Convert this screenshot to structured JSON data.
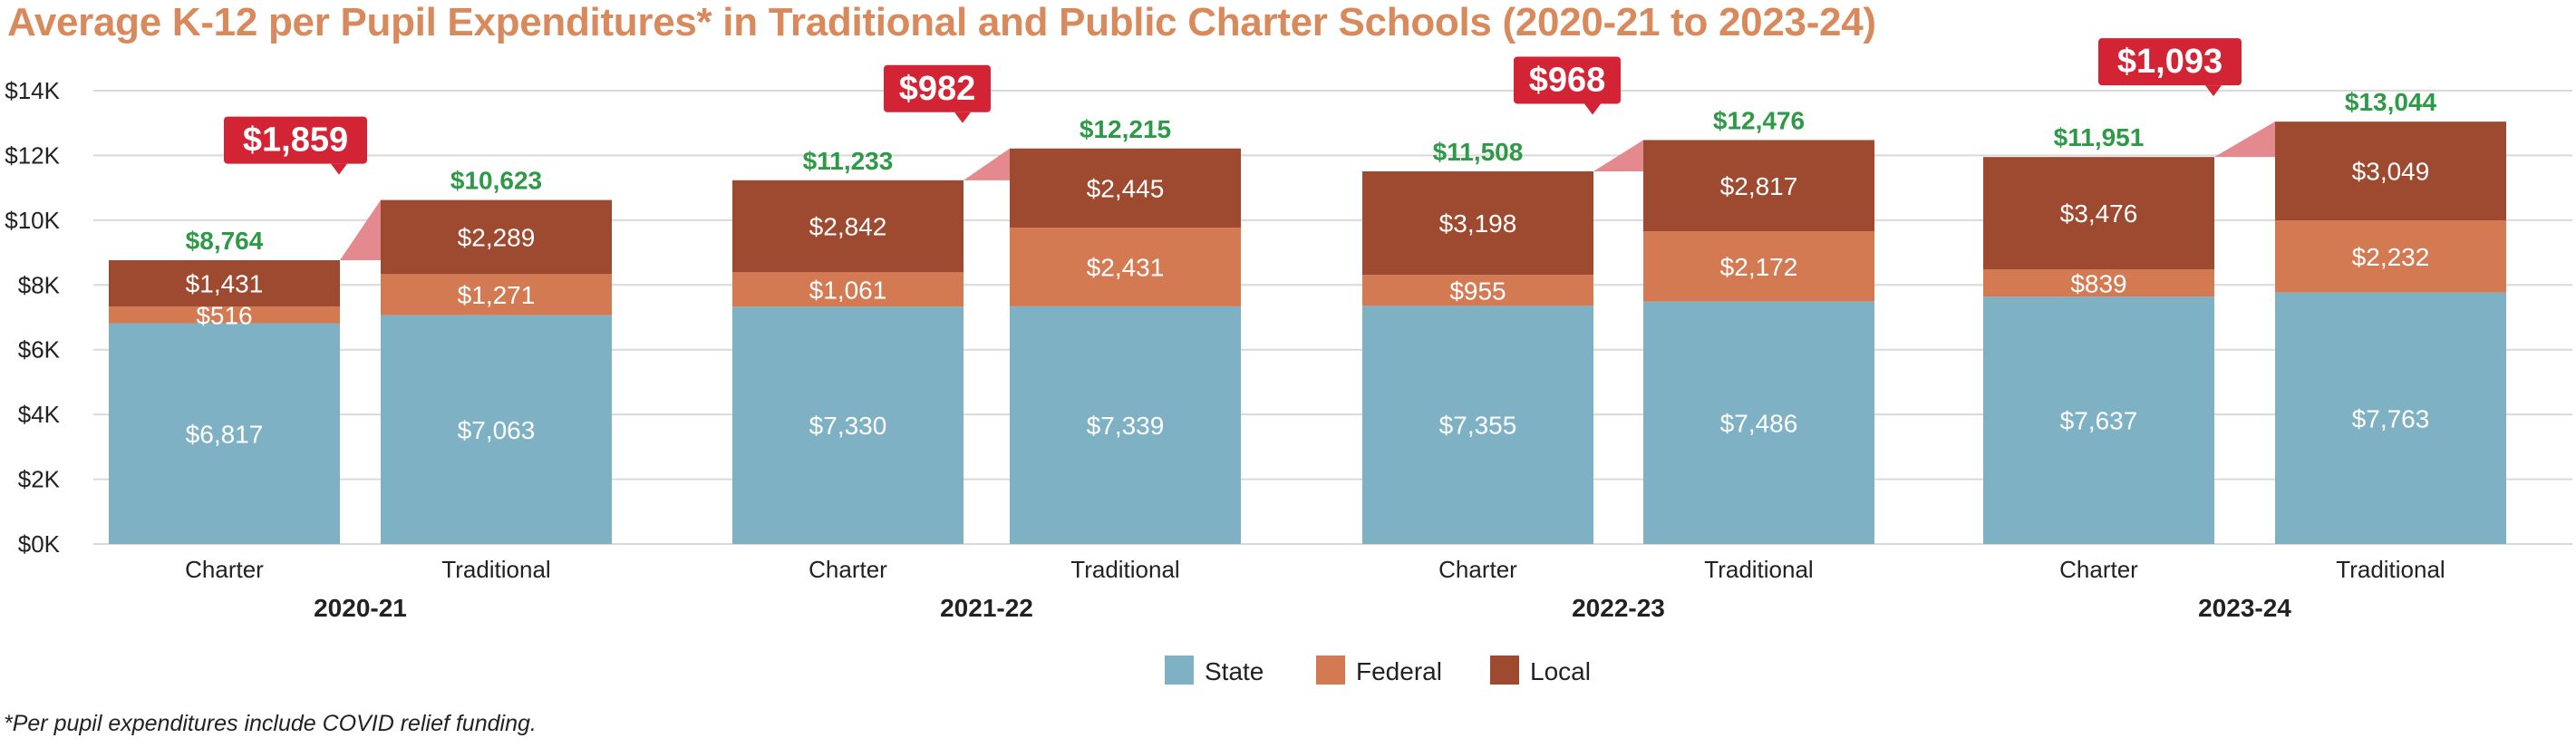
{
  "title": "Average K-12 per Pupil Expenditures* in Traditional and Public Charter Schools (2020-21 to 2023-24)",
  "footnote": "*Per pupil expenditures include COVID relief funding.",
  "colors": {
    "title": "#d98a5c",
    "state": "#7fb1c5",
    "federal": "#d47a52",
    "local": "#9e4a30",
    "total_label": "#2e9a48",
    "gap_callout": "#d32436",
    "gap_connector": "#e48a8e",
    "gridline": "#d9d9d9"
  },
  "chart_data": {
    "type": "bar",
    "stacked": true,
    "ylim": [
      0,
      14000
    ],
    "y_ticks": [
      "$0K",
      "$2K",
      "$4K",
      "$6K",
      "$8K",
      "$10K",
      "$12K",
      "$14K"
    ],
    "grid": true,
    "legend_position": "bottom",
    "groups": [
      {
        "label": "2020-21",
        "gap": "$1,859",
        "bars": [
          {
            "category": "Charter",
            "state": 6817,
            "federal": 516,
            "local": 1431,
            "state_label": "$6,817",
            "federal_label": "$516",
            "local_label": "$1,431",
            "total_label": "$8,764"
          },
          {
            "category": "Traditional",
            "state": 7063,
            "federal": 1271,
            "local": 2289,
            "state_label": "$7,063",
            "federal_label": "$1,271",
            "local_label": "$2,289",
            "total_label": "$10,623"
          }
        ]
      },
      {
        "label": "2021-22",
        "gap": "$982",
        "bars": [
          {
            "category": "Charter",
            "state": 7330,
            "federal": 1061,
            "local": 2842,
            "state_label": "$7,330",
            "federal_label": "$1,061",
            "local_label": "$2,842",
            "total_label": "$11,233"
          },
          {
            "category": "Traditional",
            "state": 7339,
            "federal": 2431,
            "local": 2445,
            "state_label": "$7,339",
            "federal_label": "$2,431",
            "local_label": "$2,445",
            "total_label": "$12,215"
          }
        ]
      },
      {
        "label": "2022-23",
        "gap": "$968",
        "bars": [
          {
            "category": "Charter",
            "state": 7355,
            "federal": 955,
            "local": 3198,
            "state_label": "$7,355",
            "federal_label": "$955",
            "local_label": "$3,198",
            "total_label": "$11,508"
          },
          {
            "category": "Traditional",
            "state": 7486,
            "federal": 2172,
            "local": 2817,
            "state_label": "$7,486",
            "federal_label": "$2,172",
            "local_label": "$2,817",
            "total_label": "$12,476"
          }
        ]
      },
      {
        "label": "2023-24",
        "gap": "$1,093",
        "bars": [
          {
            "category": "Charter",
            "state": 7637,
            "federal": 839,
            "local": 3476,
            "state_label": "$7,637",
            "federal_label": "$839",
            "local_label": "$3,476",
            "total_label": "$11,951"
          },
          {
            "category": "Traditional",
            "state": 7763,
            "federal": 2232,
            "local": 3049,
            "state_label": "$7,763",
            "federal_label": "$2,232",
            "local_label": "$3,049",
            "total_label": "$13,044"
          }
        ]
      }
    ],
    "series": [
      {
        "key": "state",
        "name": "State"
      },
      {
        "key": "federal",
        "name": "Federal"
      },
      {
        "key": "local",
        "name": "Local"
      }
    ]
  }
}
